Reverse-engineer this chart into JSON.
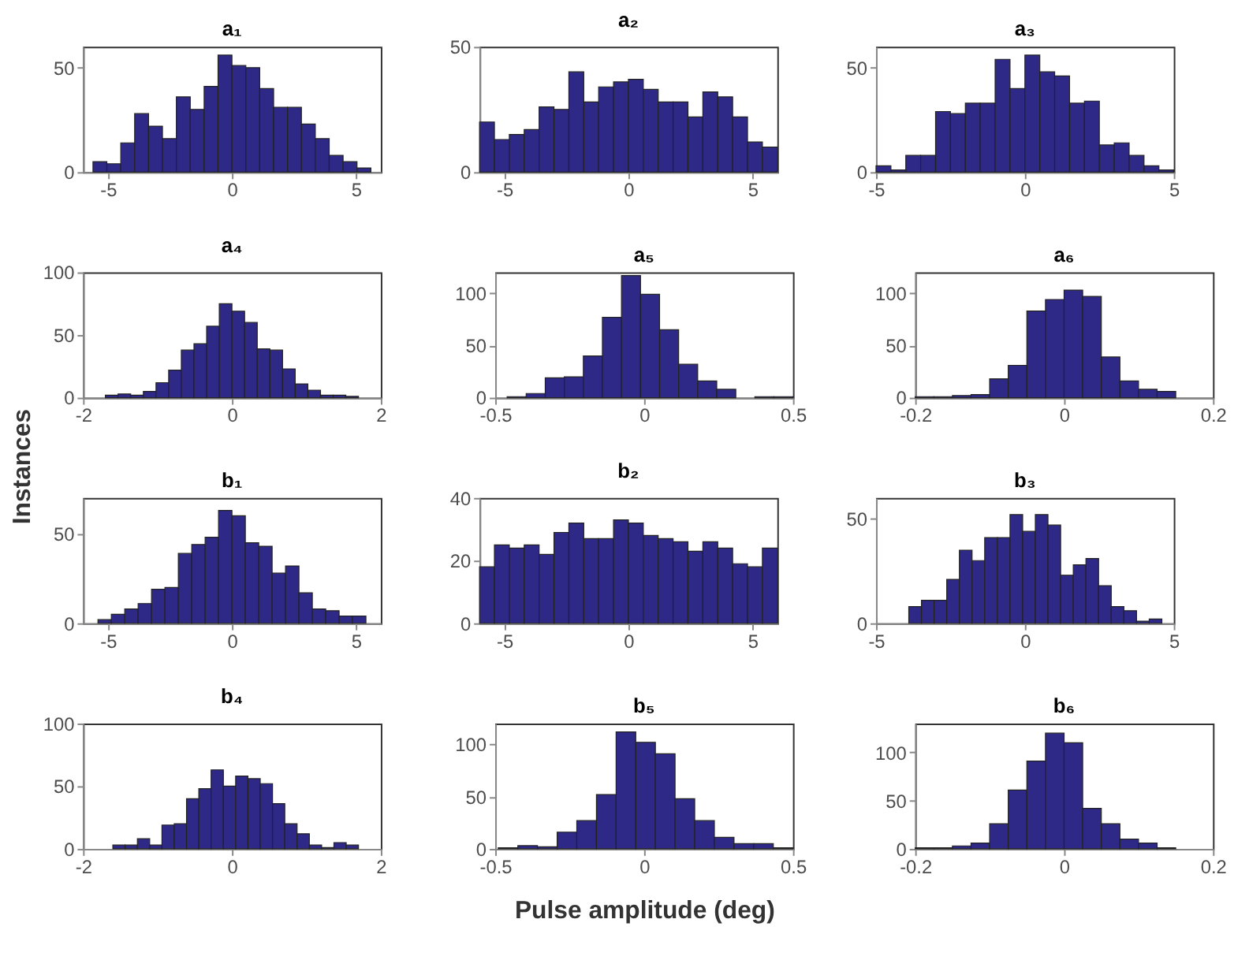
{
  "chart_data": [
    {
      "type": "histogram",
      "title": "a₁",
      "color": "#2e2886",
      "bins": [
        -5.6,
        -5.04,
        -4.48,
        -3.92,
        -3.36,
        -2.8,
        -2.24,
        -1.68,
        -1.12,
        -0.56,
        0,
        0.56,
        1.12,
        1.68,
        2.24,
        2.8,
        3.36,
        3.92,
        4.48,
        5.04,
        5.6
      ],
      "values": [
        5,
        4,
        14,
        28,
        22,
        16,
        36,
        30,
        41,
        56,
        51,
        50,
        40,
        31,
        31,
        23,
        16,
        8,
        5,
        2
      ],
      "xlim": [
        -6,
        6
      ],
      "xticks": [
        -5,
        0,
        5
      ],
      "ylim": [
        0,
        60
      ],
      "yticks": [
        0,
        50
      ]
    },
    {
      "type": "histogram",
      "title": "a₂",
      "color": "#2e2886",
      "bins": [
        -6,
        -5.4,
        -4.8,
        -4.2,
        -3.6,
        -3,
        -2.4,
        -1.8,
        -1.2,
        -0.6,
        0,
        0.6,
        1.2,
        1.8,
        2.4,
        3,
        3.6,
        4.2,
        4.8,
        5.4,
        6
      ],
      "values": [
        20,
        13,
        15,
        17,
        26,
        25,
        40,
        28,
        34,
        36,
        37,
        33,
        28,
        28,
        22,
        32,
        30,
        22,
        12,
        10
      ],
      "xlim": [
        -6,
        6
      ],
      "xticks": [
        -5,
        0,
        5
      ],
      "ylim": [
        0,
        50
      ],
      "yticks": [
        0,
        50
      ]
    },
    {
      "type": "histogram",
      "title": "a₃",
      "color": "#2e2886",
      "bins": [
        -5,
        -4.5,
        -4,
        -3.5,
        -3,
        -2.5,
        -2,
        -1.5,
        -1,
        -0.5,
        0,
        0.5,
        1,
        1.5,
        2,
        2.5,
        3,
        3.5,
        4,
        4.5,
        5
      ],
      "values": [
        3,
        1,
        8,
        8,
        29,
        28,
        33,
        33,
        54,
        40,
        56,
        48,
        46,
        33,
        34,
        13,
        14,
        8,
        3,
        1
      ],
      "xlim": [
        -5,
        5
      ],
      "xticks": [
        -5,
        0,
        5
      ],
      "ylim": [
        0,
        60
      ],
      "yticks": [
        0,
        50
      ]
    },
    {
      "type": "histogram",
      "title": "a₄",
      "ylabel": "Instances",
      "color": "#2e2886",
      "bins": [
        -1.7,
        -1.53,
        -1.36,
        -1.19,
        -1.02,
        -0.85,
        -0.68,
        -0.51,
        -0.34,
        -0.17,
        0,
        0.17,
        0.34,
        0.51,
        0.68,
        0.85,
        1.02,
        1.19,
        1.36,
        1.53,
        1.7
      ],
      "values": [
        2,
        3,
        2,
        5,
        12,
        22,
        38,
        43,
        57,
        75,
        69,
        60,
        39,
        38,
        23,
        11,
        6,
        2,
        2,
        1
      ],
      "xlim": [
        -2,
        2
      ],
      "xticks": [
        -2,
        0,
        2
      ],
      "ylim": [
        0,
        100
      ],
      "yticks": [
        0,
        50,
        100
      ]
    },
    {
      "type": "histogram",
      "title": "a₅",
      "color": "#2e2886",
      "bins": [
        -0.46,
        -0.396,
        -0.332,
        -0.268,
        -0.204,
        -0.14,
        -0.076,
        -0.012,
        0.052,
        0.116,
        0.18,
        0.244,
        0.308,
        0.372,
        0.436,
        0.5
      ],
      "values": [
        1,
        4,
        19,
        20,
        40,
        77,
        117,
        99,
        65,
        32,
        16,
        8,
        null,
        1,
        1
      ],
      "xlim": [
        -0.5,
        0.5
      ],
      "xticks": [
        -0.5,
        0,
        0.5
      ],
      "ylim": [
        0,
        120
      ],
      "yticks": [
        0,
        50,
        100
      ]
    },
    {
      "type": "histogram",
      "title": "a₆",
      "color": "#2e2886",
      "bins": [
        -0.2,
        -0.175,
        -0.15,
        -0.125,
        -0.1,
        -0.075,
        -0.05,
        -0.025,
        0,
        0.025,
        0.05,
        0.075,
        0.1,
        0.125,
        0.15
      ],
      "values": [
        1,
        1,
        2,
        3,
        18,
        31,
        83,
        94,
        103,
        97,
        39,
        16,
        8,
        6
      ],
      "xlim": [
        -0.2,
        0.2
      ],
      "xticks": [
        -0.2,
        0,
        0.2
      ],
      "ylim": [
        0,
        120
      ],
      "yticks": [
        0,
        50,
        100
      ]
    },
    {
      "type": "histogram",
      "title": "b₁",
      "color": "#2e2886",
      "bins": [
        -5.4,
        -4.86,
        -4.32,
        -3.78,
        -3.24,
        -2.7,
        -2.16,
        -1.62,
        -1.08,
        -0.54,
        0,
        0.54,
        1.08,
        1.62,
        2.16,
        2.7,
        3.24,
        3.78,
        4.32,
        4.86,
        5.4
      ],
      "values": [
        2,
        5,
        8,
        11,
        19,
        20,
        39,
        44,
        48,
        63,
        60,
        45,
        43,
        28,
        32,
        17,
        8,
        7,
        4,
        4
      ],
      "xlim": [
        -6,
        6
      ],
      "xticks": [
        -5,
        0,
        5
      ],
      "ylim": [
        0,
        70
      ],
      "yticks": [
        0,
        50
      ]
    },
    {
      "type": "histogram",
      "title": "b₂",
      "color": "#2e2886",
      "bins": [
        -6,
        -5.4,
        -4.8,
        -4.2,
        -3.6,
        -3,
        -2.4,
        -1.8,
        -1.2,
        -0.6,
        0,
        0.6,
        1.2,
        1.8,
        2.4,
        3,
        3.6,
        4.2,
        4.8,
        5.4,
        6
      ],
      "values": [
        18,
        25,
        24,
        25,
        22,
        29,
        32,
        27,
        27,
        33,
        32,
        28,
        27,
        26,
        23,
        26,
        24,
        19,
        18,
        24
      ],
      "xlim": [
        -6,
        6
      ],
      "xticks": [
        -5,
        0,
        5
      ],
      "ylim": [
        0,
        40
      ],
      "yticks": [
        0,
        20,
        40
      ]
    },
    {
      "type": "histogram",
      "title": "b₃",
      "color": "#2e2886",
      "bins": [
        -3.9,
        -3.475,
        -3.05,
        -2.625,
        -2.2,
        -1.775,
        -1.35,
        -0.925,
        -0.5,
        -0.075,
        0.35,
        0.775,
        1.2,
        1.625,
        2.05,
        2.475,
        2.9,
        3.325,
        3.75,
        4.175,
        4.6
      ],
      "values": [
        8,
        11,
        11,
        21,
        35,
        30,
        41,
        41,
        52,
        44,
        52,
        47,
        23,
        28,
        31,
        18,
        8,
        6,
        1,
        2
      ],
      "xlim": [
        -5,
        5
      ],
      "xticks": [
        -5,
        0,
        5
      ],
      "ylim": [
        0,
        60
      ],
      "yticks": [
        0,
        50
      ]
    },
    {
      "type": "histogram",
      "title": "b₄",
      "color": "#2e2886",
      "bins": [
        -1.6,
        -1.435,
        -1.27,
        -1.105,
        -0.94,
        -0.775,
        -0.61,
        -0.445,
        -0.28,
        -0.115,
        0.05,
        0.215,
        0.38,
        0.545,
        0.71,
        0.875,
        1.04,
        1.205,
        1.37,
        1.535,
        1.7
      ],
      "values": [
        3,
        3,
        8,
        3,
        19,
        20,
        40,
        48,
        63,
        50,
        58,
        56,
        52,
        36,
        20,
        12,
        3,
        1,
        5,
        3
      ],
      "xlim": [
        -2,
        2
      ],
      "xticks": [
        -2,
        0,
        2
      ],
      "ylim": [
        0,
        100
      ],
      "yticks": [
        0,
        50,
        100
      ]
    },
    {
      "type": "histogram",
      "title": "b₅",
      "xlabel": "Pulse amplitude (deg)",
      "color": "#2e2886",
      "bins": [
        -0.49,
        -0.424,
        -0.358,
        -0.292,
        -0.226,
        -0.16,
        -0.094,
        -0.028,
        0.038,
        0.104,
        0.17,
        0.236,
        0.302,
        0.368,
        0.434,
        0.5
      ],
      "values": [
        1,
        3,
        2,
        16,
        27,
        52,
        112,
        102,
        91,
        48,
        27,
        11,
        5,
        5,
        1
      ],
      "xlim": [
        -0.5,
        0.5
      ],
      "xticks": [
        -0.5,
        0,
        0.5
      ],
      "ylim": [
        0,
        120
      ],
      "yticks": [
        0,
        50,
        100
      ]
    },
    {
      "type": "histogram",
      "title": "b₆",
      "color": "#2e2886",
      "bins": [
        -0.2,
        -0.175,
        -0.15,
        -0.125,
        -0.1,
        -0.075,
        -0.05,
        -0.025,
        0,
        0.025,
        0.05,
        0.075,
        0.1,
        0.125,
        0.15
      ],
      "values": [
        1,
        1,
        3,
        6,
        26,
        61,
        91,
        120,
        110,
        42,
        26,
        10,
        6,
        1
      ],
      "xlim": [
        -0.2,
        0.2
      ],
      "xticks": [
        -0.2,
        0,
        0.2
      ],
      "ylim": [
        0,
        130
      ],
      "yticks": [
        0,
        50,
        100
      ]
    }
  ]
}
